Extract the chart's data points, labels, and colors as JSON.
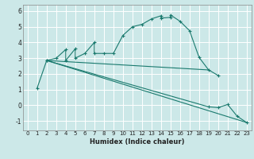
{
  "xlabel": "Humidex (Indice chaleur)",
  "bg_color": "#cce8e8",
  "line_color": "#1a7a6e",
  "grid_color": "#ffffff",
  "ylim": [
    -1.6,
    6.4
  ],
  "xlim": [
    -0.5,
    23.5
  ],
  "yticks": [
    -1,
    0,
    1,
    2,
    3,
    4,
    5,
    6
  ],
  "xticks": [
    0,
    1,
    2,
    3,
    4,
    5,
    6,
    7,
    8,
    9,
    10,
    11,
    12,
    13,
    14,
    15,
    16,
    17,
    18,
    19,
    20,
    21,
    22,
    23
  ],
  "series1_x": [
    1,
    2,
    3,
    4,
    4,
    5,
    5,
    6,
    7,
    7,
    8,
    9,
    10,
    11,
    12,
    13,
    14,
    14,
    15,
    15,
    16,
    17,
    18,
    19,
    20
  ],
  "series1_y": [
    1.1,
    2.85,
    3.0,
    3.55,
    2.85,
    3.6,
    3.0,
    3.3,
    4.0,
    3.3,
    3.3,
    3.3,
    4.45,
    5.0,
    5.15,
    5.5,
    5.7,
    5.55,
    5.6,
    5.75,
    5.35,
    4.75,
    3.05,
    2.25,
    1.9
  ],
  "series2_x": [
    2,
    23
  ],
  "series2_y": [
    2.85,
    -1.1
  ],
  "series3_x": [
    2,
    19,
    20,
    21,
    22,
    23
  ],
  "series3_y": [
    2.85,
    -0.1,
    -0.15,
    0.05,
    -0.7,
    -1.1
  ],
  "series4_x": [
    2,
    19
  ],
  "series4_y": [
    2.85,
    2.25
  ]
}
